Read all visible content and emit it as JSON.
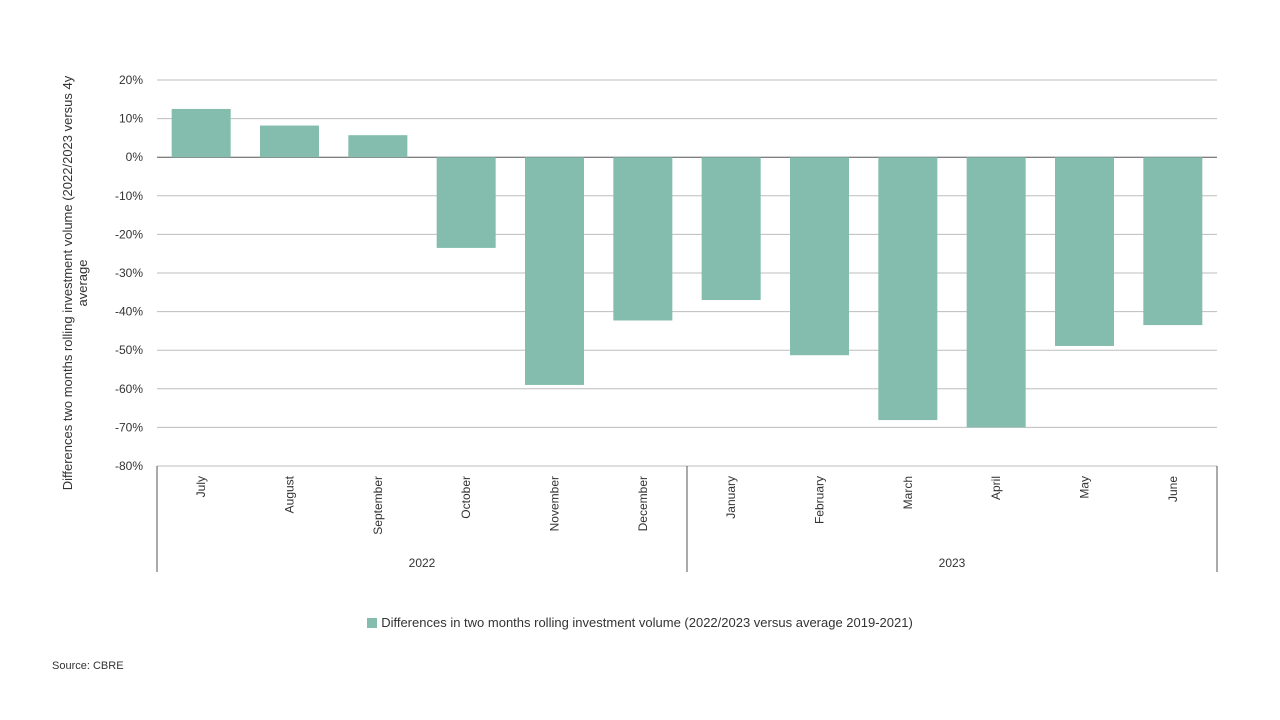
{
  "chart_data": {
    "type": "bar",
    "ylabel_lines": [
      "Differences two months rolling investment volume (2022/2023 versus 4y",
      "average"
    ],
    "ylim": [
      -80,
      20
    ],
    "yticks": [
      20,
      10,
      0,
      -10,
      -20,
      -30,
      -40,
      -50,
      -60,
      -70,
      -80
    ],
    "ytick_labels": [
      "20%",
      "10%",
      "0%",
      "-10%",
      "-20%",
      "-30%",
      "-40%",
      "-50%",
      "-60%",
      "-70%",
      "-80%"
    ],
    "categories": [
      "July",
      "August",
      "September",
      "October",
      "November",
      "December",
      "January",
      "February",
      "March",
      "April",
      "May",
      "June"
    ],
    "groups": [
      {
        "label": "2022",
        "count": 6
      },
      {
        "label": "2023",
        "count": 6
      }
    ],
    "series": [
      {
        "name": "Differences in two months rolling investment volume (2022/2023 versus average 2019-2021)",
        "color": "#84bcad",
        "values": [
          12.5,
          8.2,
          5.7,
          -23.5,
          -59,
          -42.3,
          -37,
          -51.3,
          -68.1,
          -70,
          -48.9,
          -43.5
        ]
      }
    ],
    "grid": true,
    "legend_position": "bottom"
  },
  "source": "Source: CBRE"
}
